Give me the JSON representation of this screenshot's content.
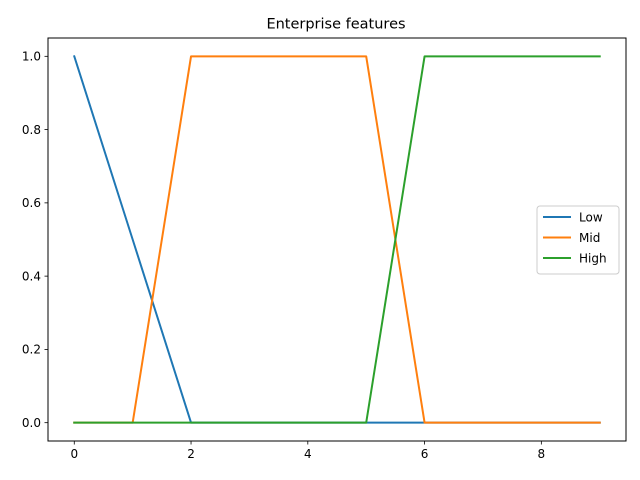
{
  "chart_data": {
    "type": "line",
    "title": "Enterprise features",
    "xlabel": "",
    "ylabel": "",
    "x": [
      0,
      1,
      2,
      3,
      4,
      5,
      6,
      7,
      8,
      9
    ],
    "xlim": [
      -0.45,
      9.45
    ],
    "ylim": [
      -0.05,
      1.05
    ],
    "xticks": [
      0,
      2,
      4,
      6,
      8
    ],
    "xtick_labels": [
      "0",
      "2",
      "4",
      "6",
      "8"
    ],
    "yticks": [
      0.0,
      0.2,
      0.4,
      0.6,
      0.8,
      1.0
    ],
    "ytick_labels": [
      "0.0",
      "0.2",
      "0.4",
      "0.6",
      "0.8",
      "1.0"
    ],
    "grid": false,
    "legend_position": "center-right",
    "series": [
      {
        "name": "Low",
        "color": "#1f77b4",
        "values": [
          1,
          0.5,
          0,
          0,
          0,
          0,
          0,
          0,
          0,
          0
        ]
      },
      {
        "name": "Mid",
        "color": "#ff7f0e",
        "values": [
          0,
          0,
          1,
          1,
          1,
          1,
          0,
          0,
          0,
          0
        ]
      },
      {
        "name": "High",
        "color": "#2ca02c",
        "values": [
          0,
          0,
          0,
          0,
          0,
          0,
          1,
          1,
          1,
          1
        ]
      }
    ]
  }
}
